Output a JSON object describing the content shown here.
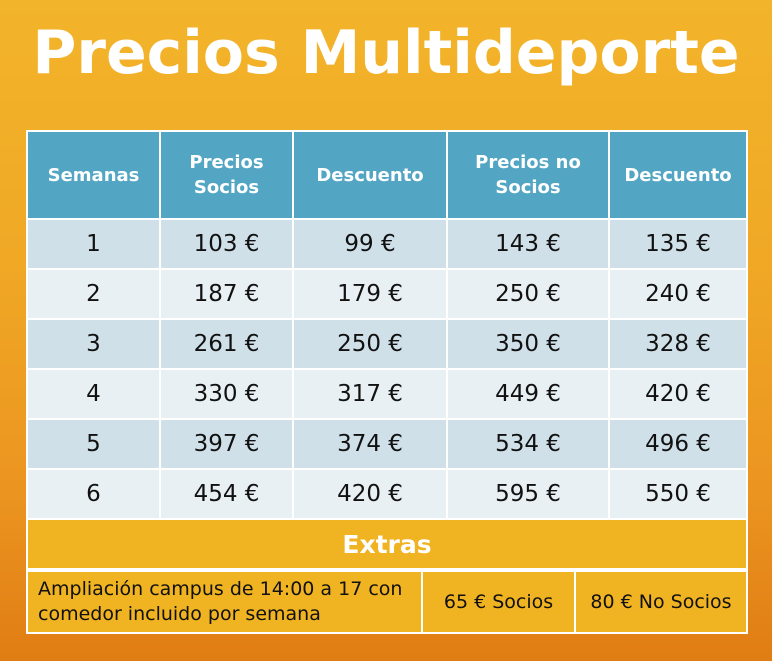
{
  "title": "Precios Multideporte",
  "headers": [
    "Semanas",
    "Precios Socios",
    "Descuento",
    "Precios no Socios",
    "Descuento"
  ],
  "rows": [
    [
      "1",
      "103 €",
      "99 €",
      "143 €",
      "135 €"
    ],
    [
      "2",
      "187 €",
      "179 €",
      "250 €",
      "240 €"
    ],
    [
      "3",
      "261 €",
      "250 €",
      "350 €",
      "328 €"
    ],
    [
      "4",
      "330 €",
      "317 €",
      "449 €",
      "420 €"
    ],
    [
      "5",
      "397 €",
      "374 €",
      "534 €",
      "496 €"
    ],
    [
      "6",
      "454 €",
      "420 €",
      "595 €",
      "550 €"
    ]
  ],
  "extras": {
    "title": "Extras",
    "description": "Ampliación campus de 14:00 a 17 con comedor incluido por semana",
    "socios": "65 € Socios",
    "no_socios": "80 € No Socios"
  },
  "colors": {
    "header": "#52a6c3",
    "row_dark": "#d0e0e9",
    "row_light": "#e9f0f4",
    "extras": "#f0b321"
  }
}
